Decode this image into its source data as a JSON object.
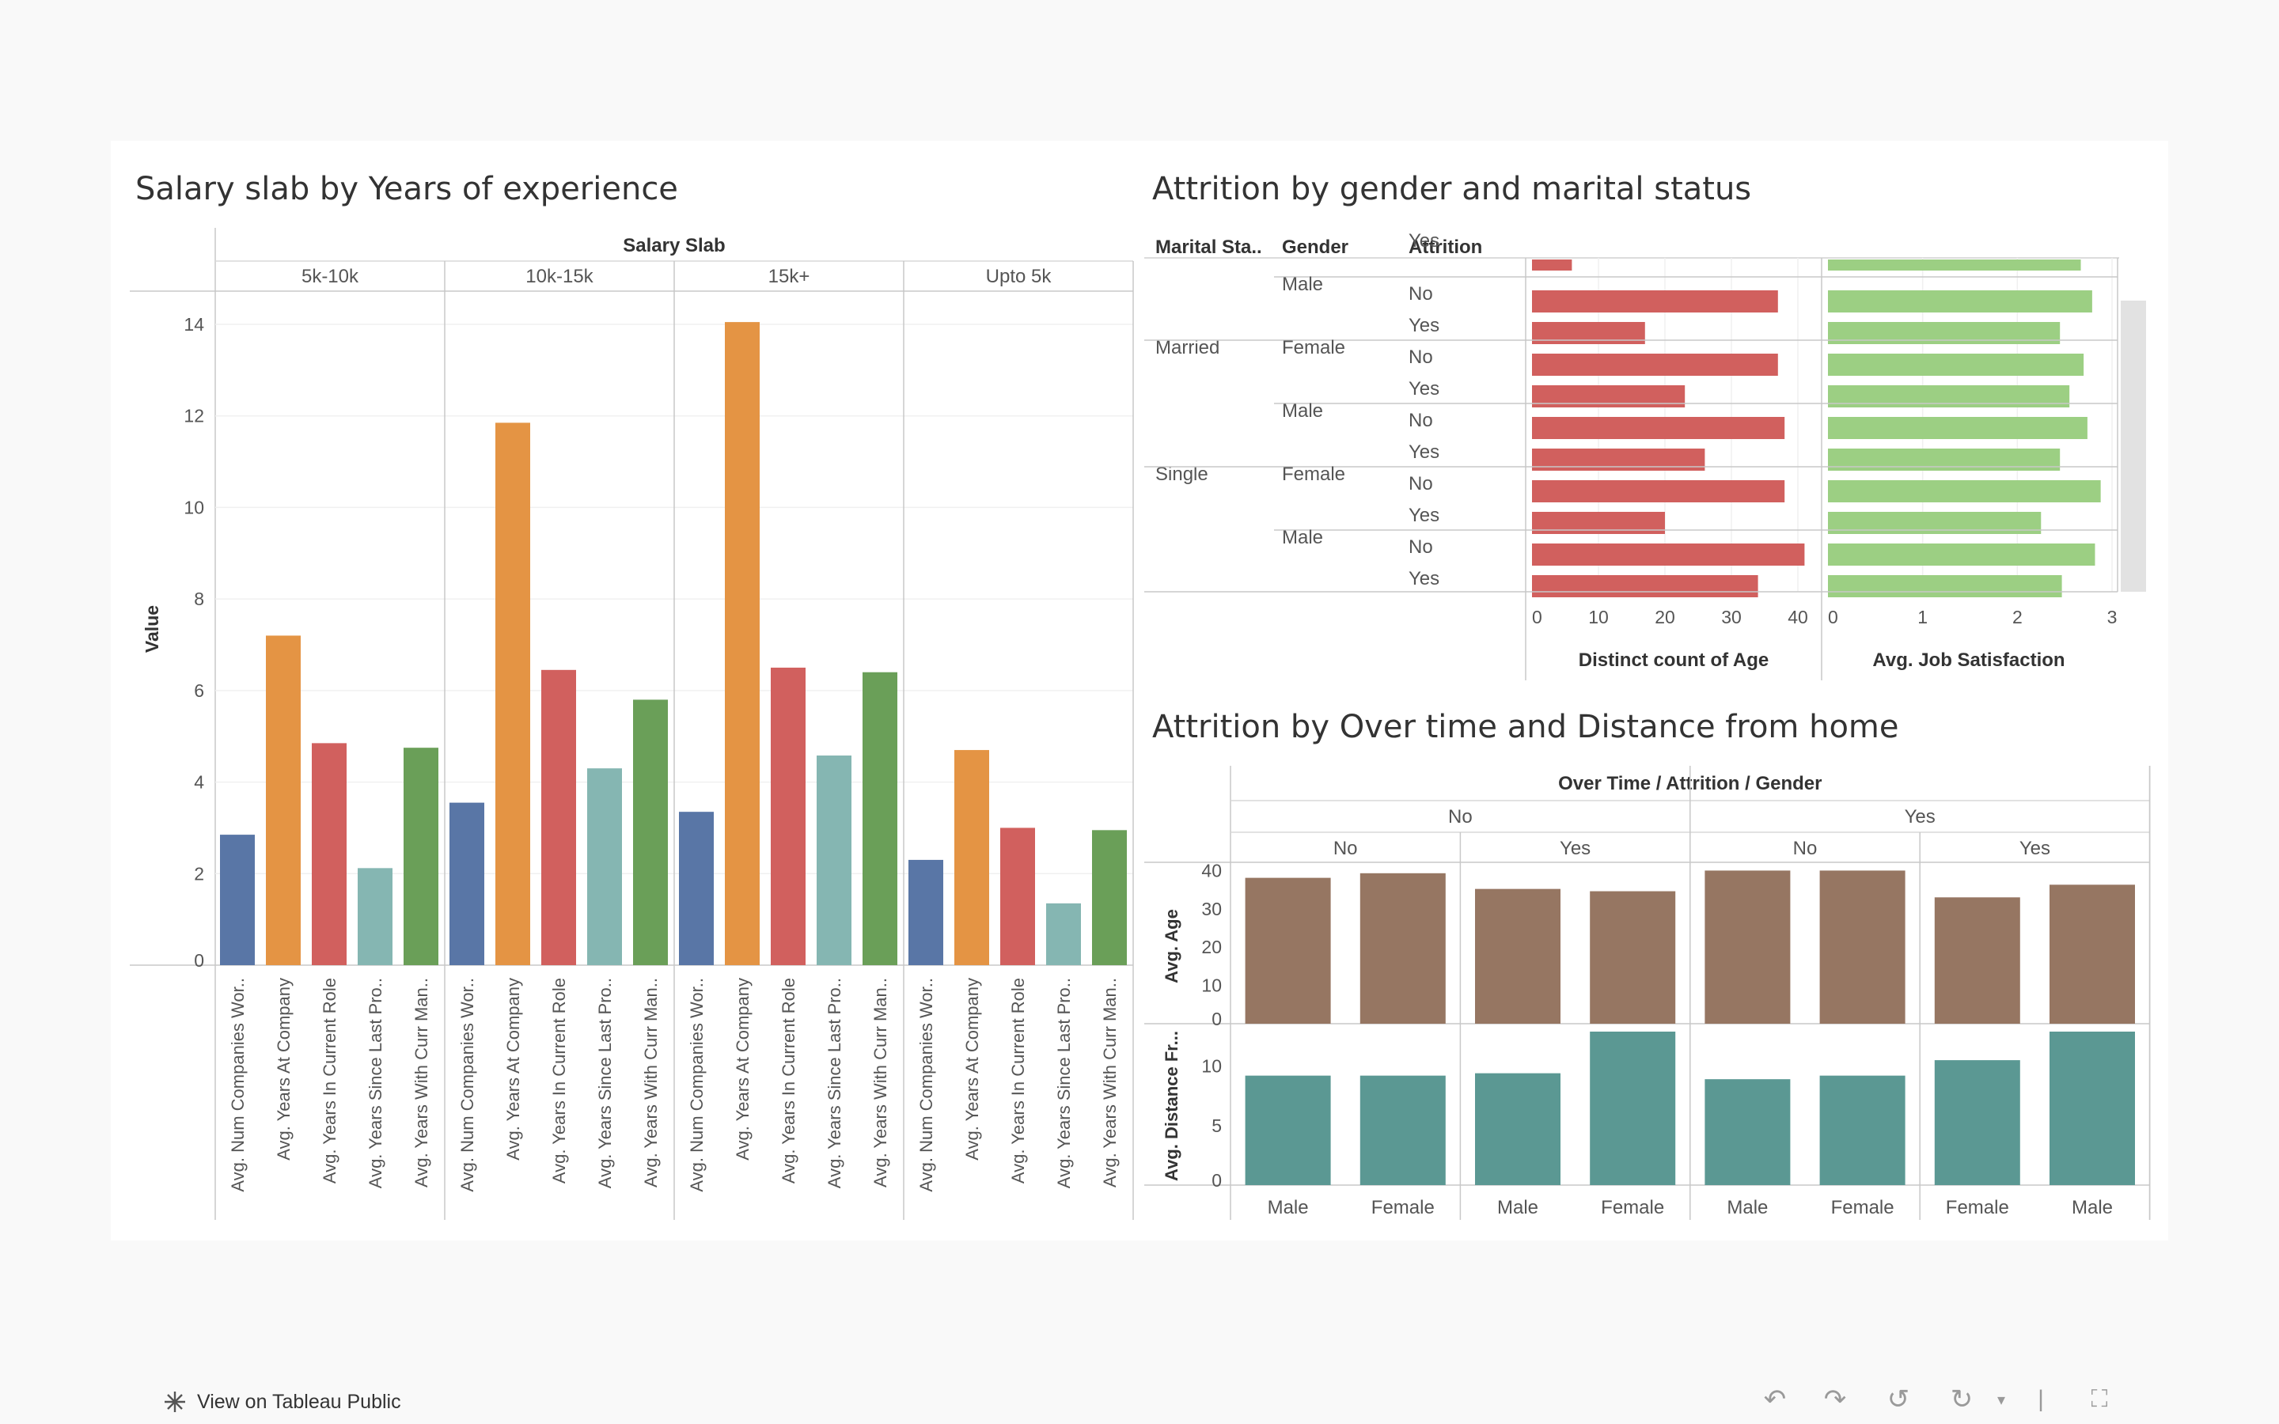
{
  "footer": {
    "view_on_tableau_label": "View on Tableau Public"
  },
  "toolbar": {
    "icons": [
      "undo-icon",
      "redo-icon",
      "revert-icon",
      "refresh-icon",
      "dropdown-icon",
      "fullscreen-icon"
    ]
  },
  "colors": {
    "measures": [
      "#5976a6",
      "#e49444",
      "#d1605e",
      "#85b6b2",
      "#6a9f58"
    ],
    "attrition_count": "#d1605e",
    "job_satisfaction": "#9ccf83",
    "avg_age": "#967662",
    "avg_distance": "#5b9893"
  },
  "chart_data": [
    {
      "type": "bar",
      "title": "Salary slab by Years of experience",
      "header": "Salary Slab",
      "ylabel": "Value",
      "ylim": [
        0,
        14
      ],
      "yticks": [
        "0",
        "2",
        "4",
        "6",
        "8",
        "10",
        "12",
        "14"
      ],
      "groups": [
        "5k-10k",
        "10k-15k",
        "15k+",
        "Upto 5k"
      ],
      "categories": [
        "Avg. Num Companies Wor..",
        "Avg. Years At Company",
        "Avg. Years In Current Role",
        "Avg. Years Since Last Pro..",
        "Avg. Years With Curr Man.."
      ],
      "values": [
        [
          2.85,
          7.2,
          4.85,
          2.12,
          4.75
        ],
        [
          3.55,
          11.85,
          6.45,
          4.3,
          5.8
        ],
        [
          3.35,
          14.05,
          6.5,
          4.58,
          6.4
        ],
        [
          2.3,
          4.7,
          3.0,
          1.35,
          2.95
        ]
      ]
    },
    {
      "type": "bar",
      "title": "Attrition by gender and marital status",
      "headers": [
        "Marital Sta..",
        "Gender",
        "Attrition"
      ],
      "rows": [
        {
          "marital": "",
          "gender": "",
          "attrition": "Yes",
          "count": 6,
          "satisfaction": 2.67
        },
        {
          "marital": "",
          "gender": "Male",
          "attrition": "No",
          "count": 37,
          "satisfaction": 2.79
        },
        {
          "marital": "",
          "gender": "",
          "attrition": "Yes",
          "count": 17,
          "satisfaction": 2.45
        },
        {
          "marital": "Married",
          "gender": "Female",
          "attrition": "No",
          "count": 37,
          "satisfaction": 2.7
        },
        {
          "marital": "",
          "gender": "",
          "attrition": "Yes",
          "count": 23,
          "satisfaction": 2.55
        },
        {
          "marital": "",
          "gender": "Male",
          "attrition": "No",
          "count": 38,
          "satisfaction": 2.74
        },
        {
          "marital": "",
          "gender": "",
          "attrition": "Yes",
          "count": 26,
          "satisfaction": 2.45
        },
        {
          "marital": "Single",
          "gender": "Female",
          "attrition": "No",
          "count": 38,
          "satisfaction": 2.88
        },
        {
          "marital": "",
          "gender": "",
          "attrition": "Yes",
          "count": 20,
          "satisfaction": 2.25
        },
        {
          "marital": "",
          "gender": "Male",
          "attrition": "No",
          "count": 41,
          "satisfaction": 2.82
        },
        {
          "marital": "",
          "gender": "",
          "attrition": "Yes",
          "count": 34,
          "satisfaction": 2.47
        }
      ],
      "measure1": {
        "label": "Distinct count of Age",
        "ticks": [
          "0",
          "10",
          "20",
          "30",
          "40"
        ],
        "xlim": [
          0,
          44
        ]
      },
      "measure2": {
        "label": "Avg. Job Satisfaction",
        "ticks": [
          "0",
          "1",
          "2",
          "3"
        ],
        "xlim": [
          0,
          3.05
        ]
      }
    },
    {
      "type": "bar",
      "title": "Attrition by Over time and Distance from home",
      "header": "Over Time / Attrition / Gender",
      "overtime": [
        "No",
        "Yes"
      ],
      "attrition": [
        "No",
        "Yes",
        "No",
        "Yes"
      ],
      "categories": [
        "Male",
        "Female",
        "Male",
        "Female",
        "Male",
        "Female",
        "Female",
        "Male"
      ],
      "series": [
        {
          "name": "Avg. Age",
          "values": [
            38.1,
            39.3,
            35.2,
            34.6,
            40.0,
            40.0,
            33.0,
            36.3
          ],
          "ylim": [
            0,
            40.5
          ],
          "ticks": [
            "0",
            "10",
            "20",
            "30",
            "40"
          ]
        },
        {
          "name": "Avg. Distance Fr...",
          "values": [
            9.2,
            9.2,
            9.4,
            12.9,
            8.9,
            9.2,
            10.5,
            12.9
          ],
          "ylim": [
            0,
            12.9
          ],
          "ticks": [
            "0",
            "5",
            "10"
          ]
        }
      ]
    }
  ]
}
